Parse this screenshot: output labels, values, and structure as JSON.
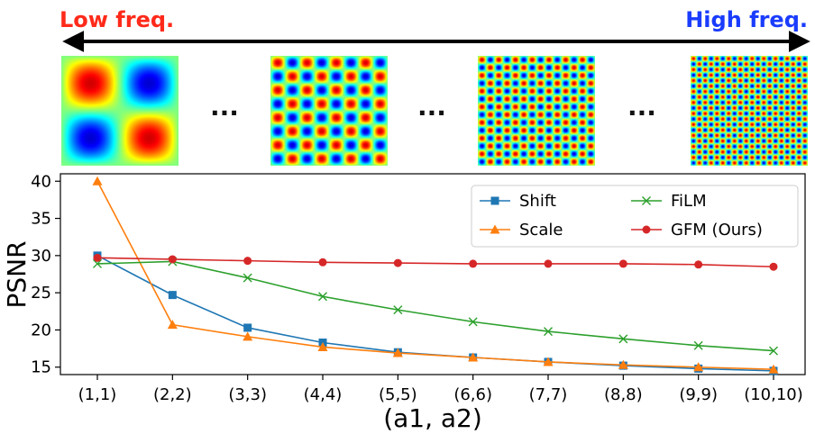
{
  "header": {
    "low_label": "Low freq.",
    "high_label": "High freq.",
    "low_color": "#ff2a1a",
    "high_color": "#1a3cff",
    "ellipsis": "..."
  },
  "patterns": [
    {
      "frequency": 1
    },
    {
      "frequency": 4
    },
    {
      "frequency": 7
    },
    {
      "frequency": 10
    }
  ],
  "chart_data": {
    "type": "line",
    "title": "",
    "xlabel": "(a1, a2)",
    "ylabel": "PSNR",
    "categories": [
      "(1,1)",
      "(2,2)",
      "(3,3)",
      "(4,4)",
      "(5,5)",
      "(6,6)",
      "(7,7)",
      "(8,8)",
      "(9,9)",
      "(10,10)"
    ],
    "ylim": [
      14,
      41
    ],
    "yticks": [
      15,
      20,
      25,
      30,
      35,
      40
    ],
    "grid": false,
    "legend_position": "top-right",
    "series": [
      {
        "name": "Shift",
        "color": "#1f77b4",
        "marker": "square",
        "values": [
          30.0,
          24.7,
          20.3,
          18.3,
          17.0,
          16.3,
          15.7,
          15.2,
          14.8,
          14.5
        ]
      },
      {
        "name": "Scale",
        "color": "#ff7f0e",
        "marker": "triangle",
        "values": [
          40.0,
          20.7,
          19.1,
          17.7,
          16.9,
          16.3,
          15.7,
          15.3,
          15.0,
          14.7
        ]
      },
      {
        "name": "FiLM",
        "color": "#2ca02c",
        "marker": "x",
        "values": [
          28.9,
          29.2,
          27.0,
          24.5,
          22.7,
          21.1,
          19.8,
          18.8,
          17.9,
          17.2
        ]
      },
      {
        "name": "GFM (Ours)",
        "color": "#d62728",
        "marker": "circle",
        "values": [
          29.7,
          29.5,
          29.3,
          29.1,
          29.0,
          28.9,
          28.9,
          28.9,
          28.8,
          28.5
        ]
      }
    ]
  }
}
